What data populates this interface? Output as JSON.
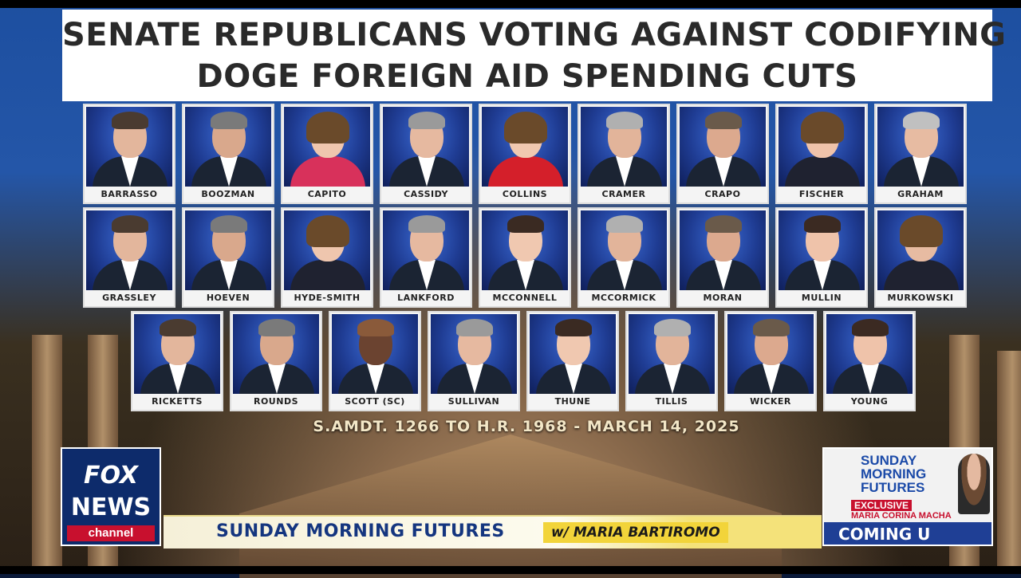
{
  "headline": {
    "line1": "SENATE REPUBLICANS VOTING AGAINST CODIFYING",
    "line2": "DOGE FOREIGN AID SPENDING CUTS"
  },
  "senators": [
    "BARRASSO",
    "BOOZMAN",
    "CAPITO",
    "CASSIDY",
    "COLLINS",
    "CRAMER",
    "CRAPO",
    "FISCHER",
    "GRAHAM",
    "GRASSLEY",
    "HOEVEN",
    "HYDE-SMITH",
    "LANKFORD",
    "MCCONNELL",
    "MCCORMICK",
    "MORAN",
    "MULLIN",
    "MURKOWSKI",
    "RICKETTS",
    "ROUNDS",
    "SCOTT (SC)",
    "SULLIVAN",
    "THUNE",
    "TILLIS",
    "WICKER",
    "YOUNG"
  ],
  "amendment": "S.AMDT. 1266 TO H.R. 1968 - MARCH 14, 2025",
  "logo": {
    "fox": "FOX",
    "news": "NEWS",
    "channel": "channel"
  },
  "ticker": {
    "show": "SUNDAY MORNING FUTURES",
    "host": "w/ MARIA BARTIROMO"
  },
  "promo": {
    "title": "SUNDAY MORNING FUTURES",
    "exclusive": "EXCLUSIVE",
    "guest": "MARIA CORINA MACHA",
    "coming": "COMING U"
  },
  "colors": {
    "headline_bg": "#ffffff",
    "card_bg": "#1f3c93",
    "fox_blue": "#0d2b6b",
    "fox_red": "#c8102e",
    "ticker_yellow": "#f2d43a"
  }
}
